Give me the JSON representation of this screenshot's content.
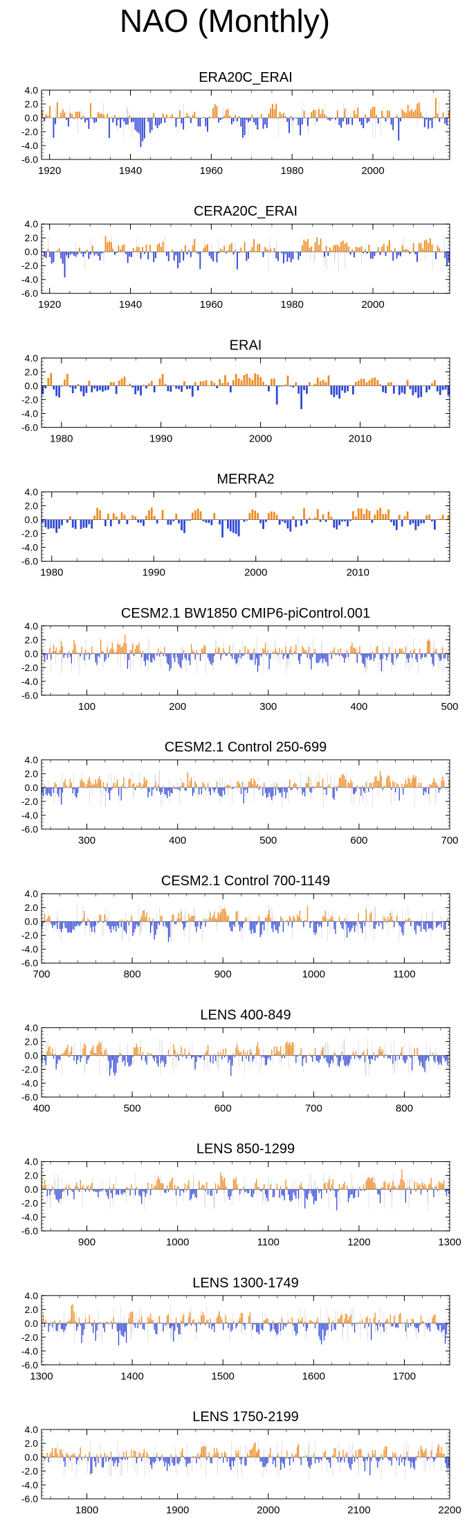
{
  "page_title": "NAO (Monthly)",
  "colors": {
    "positive": "#ee8a1f",
    "negative": "#2e45d6",
    "gray": "#b8b8b8",
    "axis": "#000000"
  },
  "chart_data": [
    {
      "type": "bar",
      "title": "ERA20C_ERAI",
      "xlim": [
        1918,
        2019
      ],
      "ylim": [
        -6,
        4
      ],
      "yticks": [
        4,
        2,
        0,
        -2,
        -4,
        -6
      ],
      "ytick_labels": [
        "4.0",
        "2.0",
        "0.0",
        "-2.0",
        "-4.0",
        "-6.0"
      ],
      "xticks": [
        1920,
        1940,
        1960,
        1980,
        2000
      ],
      "xtick_labels": [
        "1920",
        "1940",
        "1960",
        "1980",
        "2000"
      ],
      "series": {
        "positive": "orange bars",
        "negative": "blue bars",
        "background": "gray lines"
      },
      "seed": 11,
      "amplitude": 1.2,
      "n": 220,
      "bg": 60
    },
    {
      "type": "bar",
      "title": "CERA20C_ERAI",
      "xlim": [
        1918,
        2019
      ],
      "ylim": [
        -6,
        4
      ],
      "yticks": [
        4,
        2,
        0,
        -2,
        -4,
        -6
      ],
      "ytick_labels": [
        "4.0",
        "2.0",
        "0.0",
        "-2.0",
        "-4.0",
        "-6.0"
      ],
      "xticks": [
        1920,
        1940,
        1960,
        1980,
        2000
      ],
      "xtick_labels": [
        "1920",
        "1940",
        "1960",
        "1980",
        "2000"
      ],
      "series": {
        "positive": "orange bars",
        "negative": "blue bars",
        "background": "gray lines"
      },
      "seed": 23,
      "amplitude": 1.2,
      "n": 220,
      "bg": 60
    },
    {
      "type": "bar",
      "title": "ERAI",
      "xlim": [
        1978,
        2019
      ],
      "ylim": [
        -6,
        4
      ],
      "yticks": [
        4,
        2,
        0,
        -2,
        -4,
        -6
      ],
      "ytick_labels": [
        "4.0",
        "2.0",
        "0.0",
        "-2.0",
        "-4.0",
        "-6.0"
      ],
      "xticks": [
        1980,
        1990,
        2000,
        2010
      ],
      "xtick_labels": [
        "1980",
        "1990",
        "2000",
        "2010"
      ],
      "series": {
        "positive": "orange bars",
        "negative": "blue bars"
      },
      "seed": 37,
      "amplitude": 1.1,
      "n": 150,
      "bg": 0
    },
    {
      "type": "bar",
      "title": "MERRA2",
      "xlim": [
        1979,
        2019
      ],
      "ylim": [
        -6,
        4
      ],
      "yticks": [
        4,
        2,
        0,
        -2,
        -4,
        -6
      ],
      "ytick_labels": [
        "4.0",
        "2.0",
        "0.0",
        "-2.0",
        "-4.0",
        "-6.0"
      ],
      "xticks": [
        1980,
        1990,
        2000,
        2010
      ],
      "xtick_labels": [
        "1980",
        "1990",
        "2000",
        "2010"
      ],
      "series": {
        "positive": "orange bars",
        "negative": "blue bars"
      },
      "seed": 41,
      "amplitude": 1.1,
      "n": 150,
      "bg": 0
    },
    {
      "type": "bar",
      "title": "CESM2.1 BW1850 CMIP6-piControl.001",
      "xlim": [
        50,
        500
      ],
      "ylim": [
        -6,
        4
      ],
      "yticks": [
        4,
        2,
        0,
        -2,
        -4,
        -6
      ],
      "ytick_labels": [
        "4.0",
        "2.0",
        "0.0",
        "-2.0",
        "-4.0",
        "-6.0"
      ],
      "xticks": [
        100,
        200,
        300,
        400,
        500
      ],
      "xtick_labels": [
        "100",
        "200",
        "300",
        "400",
        "500"
      ],
      "series": {
        "positive": "orange bars",
        "negative": "blue bars",
        "background": "gray lines"
      },
      "seed": 53,
      "amplitude": 1.0,
      "n": 320,
      "bg": 180
    },
    {
      "type": "bar",
      "title": "CESM2.1 Control 250-699",
      "xlim": [
        250,
        700
      ],
      "ylim": [
        -6,
        4
      ],
      "yticks": [
        4,
        2,
        0,
        -2,
        -4,
        -6
      ],
      "ytick_labels": [
        "4.0",
        "2.0",
        "0.0",
        "-2.0",
        "-4.0",
        "-6.0"
      ],
      "xticks": [
        300,
        400,
        500,
        600,
        700
      ],
      "xtick_labels": [
        "300",
        "400",
        "500",
        "600",
        "700"
      ],
      "series": {
        "positive": "orange bars",
        "negative": "blue bars",
        "background": "gray lines"
      },
      "seed": 67,
      "amplitude": 1.0,
      "n": 320,
      "bg": 180
    },
    {
      "type": "bar",
      "title": "CESM2.1 Control 700-1149",
      "xlim": [
        700,
        1150
      ],
      "ylim": [
        -6,
        4
      ],
      "yticks": [
        4,
        2,
        0,
        -2,
        -4,
        -6
      ],
      "ytick_labels": [
        "4.0",
        "2.0",
        "0.0",
        "-2.0",
        "-4.0",
        "-6.0"
      ],
      "xticks": [
        700,
        800,
        900,
        1000,
        1100
      ],
      "xtick_labels": [
        "700",
        "800",
        "900",
        "1000",
        "1100"
      ],
      "series": {
        "positive": "orange bars",
        "negative": "blue bars",
        "background": "gray lines"
      },
      "seed": 71,
      "amplitude": 1.0,
      "n": 320,
      "bg": 180
    },
    {
      "type": "bar",
      "title": "LENS 400-849",
      "xlim": [
        400,
        850
      ],
      "ylim": [
        -6,
        4
      ],
      "yticks": [
        4,
        2,
        0,
        -2,
        -4,
        -6
      ],
      "ytick_labels": [
        "4.0",
        "2.0",
        "0.0",
        "-2.0",
        "-4.0",
        "-6.0"
      ],
      "xticks": [
        400,
        500,
        600,
        700,
        800
      ],
      "xtick_labels": [
        "400",
        "500",
        "600",
        "700",
        "800"
      ],
      "series": {
        "positive": "orange bars",
        "negative": "blue bars",
        "background": "gray lines"
      },
      "seed": 83,
      "amplitude": 1.0,
      "n": 320,
      "bg": 180
    },
    {
      "type": "bar",
      "title": "LENS 850-1299",
      "xlim": [
        850,
        1300
      ],
      "ylim": [
        -6,
        4
      ],
      "yticks": [
        4,
        2,
        0,
        -2,
        -4,
        -6
      ],
      "ytick_labels": [
        "4.0",
        "2.0",
        "0.0",
        "-2.0",
        "-4.0",
        "-6.0"
      ],
      "xticks": [
        900,
        1000,
        1100,
        1200,
        1300
      ],
      "xtick_labels": [
        "900",
        "1000",
        "1100",
        "1200",
        "1300"
      ],
      "series": {
        "positive": "orange bars",
        "negative": "blue bars",
        "background": "gray lines"
      },
      "seed": 97,
      "amplitude": 1.0,
      "n": 320,
      "bg": 180
    },
    {
      "type": "bar",
      "title": "LENS 1300-1749",
      "xlim": [
        1300,
        1750
      ],
      "ylim": [
        -6,
        4
      ],
      "yticks": [
        4,
        2,
        0,
        -2,
        -4,
        -6
      ],
      "ytick_labels": [
        "4.0",
        "2.0",
        "0.0",
        "-2.0",
        "-4.0",
        "-6.0"
      ],
      "xticks": [
        1300,
        1400,
        1500,
        1600,
        1700
      ],
      "xtick_labels": [
        "1300",
        "1400",
        "1500",
        "1600",
        "1700"
      ],
      "series": {
        "positive": "orange bars",
        "negative": "blue bars",
        "background": "gray lines"
      },
      "seed": 101,
      "amplitude": 1.0,
      "n": 320,
      "bg": 180
    },
    {
      "type": "bar",
      "title": "LENS 1750-2199",
      "xlim": [
        1750,
        2200
      ],
      "ylim": [
        -6,
        4
      ],
      "yticks": [
        4,
        2,
        0,
        -2,
        -4,
        -6
      ],
      "ytick_labels": [
        "4.0",
        "2.0",
        "0.0",
        "-2.0",
        "-4.0",
        "-6.0"
      ],
      "xticks": [
        1800,
        1900,
        2000,
        2100,
        2200
      ],
      "xtick_labels": [
        "1800",
        "1900",
        "2000",
        "2100",
        "2200"
      ],
      "series": {
        "positive": "orange bars",
        "negative": "blue bars",
        "background": "gray lines"
      },
      "seed": 113,
      "amplitude": 1.0,
      "n": 320,
      "bg": 180
    }
  ]
}
